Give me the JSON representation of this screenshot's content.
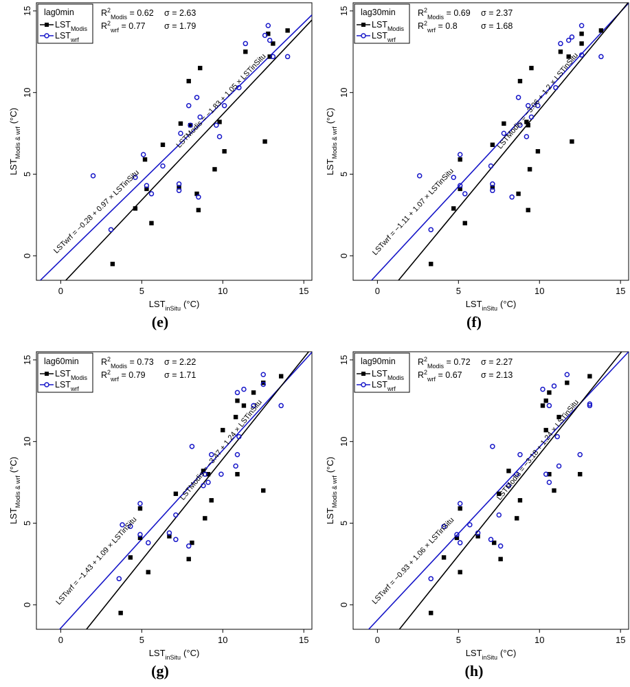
{
  "figure": {
    "legend_modis_base": "LST",
    "legend_modis_sub": "Modis",
    "legend_wrf_base": "LST",
    "legend_wrf_sub": "wrf",
    "colors": {
      "modis": "#000000",
      "wrf": "#1515c8"
    }
  },
  "chart_data": [
    {
      "type": "scatter",
      "panel_label": "(e)",
      "lag_label": "lag0min",
      "xlabel": "LST inSitu (°C)",
      "ylabel": "LST Modis & wrf (°C)",
      "xlim": [
        -1.5,
        15.5
      ],
      "ylim": [
        -1.5,
        15.5
      ],
      "xticks": [
        0,
        5,
        10,
        15
      ],
      "yticks": [
        0,
        5,
        10,
        15
      ],
      "r2_modis": "0.62",
      "sigma_modis": "2.63",
      "r2_wrf": "0.77",
      "sigma_wrf": "1.79",
      "fit_modis": {
        "intercept": -1.83,
        "slope": 1.05,
        "text": "LSTModis = −1.83 + 1.05 × LSTinSitu"
      },
      "fit_wrf": {
        "intercept": -0.28,
        "slope": 0.97,
        "text": "LSTwrf = −0.28 + 0.97 × LSTinSitu"
      },
      "series": [
        {
          "name": "LST Modis",
          "marker": "square",
          "points": [
            [
              3.2,
              -0.5
            ],
            [
              4.6,
              2.9
            ],
            [
              5.2,
              5.9
            ],
            [
              5.3,
              4.1
            ],
            [
              5.6,
              2.0
            ],
            [
              6.3,
              6.8
            ],
            [
              7.3,
              4.2
            ],
            [
              7.4,
              8.1
            ],
            [
              7.9,
              10.7
            ],
            [
              8.0,
              8.0
            ],
            [
              8.4,
              3.8
            ],
            [
              8.5,
              2.8
            ],
            [
              8.6,
              11.5
            ],
            [
              9.5,
              5.3
            ],
            [
              9.8,
              8.2
            ],
            [
              10.1,
              6.4
            ],
            [
              11.4,
              12.5
            ],
            [
              12.6,
              7.0
            ],
            [
              12.8,
              13.6
            ],
            [
              12.9,
              12.2
            ],
            [
              13.1,
              13.0
            ],
            [
              14.0,
              13.8
            ]
          ]
        },
        {
          "name": "LST wrf",
          "marker": "circle",
          "points": [
            [
              2.0,
              4.9
            ],
            [
              3.1,
              1.6
            ],
            [
              4.6,
              4.8
            ],
            [
              5.1,
              6.2
            ],
            [
              5.3,
              4.3
            ],
            [
              5.6,
              3.8
            ],
            [
              6.3,
              5.5
            ],
            [
              7.3,
              4.4
            ],
            [
              7.3,
              4.0
            ],
            [
              7.4,
              7.5
            ],
            [
              7.9,
              9.2
            ],
            [
              8.0,
              8.0
            ],
            [
              8.4,
              9.7
            ],
            [
              8.5,
              3.6
            ],
            [
              8.6,
              8.5
            ],
            [
              9.6,
              8.0
            ],
            [
              9.8,
              7.3
            ],
            [
              10.1,
              9.2
            ],
            [
              11.0,
              10.3
            ],
            [
              11.4,
              13.0
            ],
            [
              12.6,
              13.5
            ],
            [
              12.8,
              14.1
            ],
            [
              12.9,
              13.2
            ],
            [
              13.1,
              12.2
            ],
            [
              14.0,
              12.2
            ]
          ]
        }
      ]
    },
    {
      "type": "scatter",
      "panel_label": "(f)",
      "lag_label": "lag30min",
      "xlabel": "LST inSitu (°C)",
      "ylabel": "LST Modis & wrf (°C)",
      "xlim": [
        -1.5,
        15.5
      ],
      "ylim": [
        -1.5,
        15.5
      ],
      "xticks": [
        0,
        5,
        10,
        15
      ],
      "yticks": [
        0,
        5,
        10,
        15
      ],
      "r2_modis": "0.69",
      "sigma_modis": "2.37",
      "r2_wrf": "0.8",
      "sigma_wrf": "1.68",
      "fit_modis": {
        "intercept": -3.06,
        "slope": 1.2,
        "text": "LSTModis = −3.06 + 1.2 × LSTinSitu"
      },
      "fit_wrf": {
        "intercept": -1.11,
        "slope": 1.07,
        "text": "LSTwrf = −1.11 + 1.07 × LSTinSitu"
      },
      "series": [
        {
          "name": "LST Modis",
          "marker": "square",
          "points": [
            [
              3.3,
              -0.5
            ],
            [
              4.7,
              2.9
            ],
            [
              5.1,
              5.9
            ],
            [
              5.1,
              4.1
            ],
            [
              5.4,
              2.0
            ],
            [
              7.1,
              6.8
            ],
            [
              7.1,
              4.2
            ],
            [
              7.8,
              8.1
            ],
            [
              8.7,
              3.8
            ],
            [
              8.8,
              10.7
            ],
            [
              9.2,
              8.2
            ],
            [
              9.3,
              2.8
            ],
            [
              9.3,
              8.0
            ],
            [
              9.4,
              5.3
            ],
            [
              9.5,
              11.5
            ],
            [
              9.9,
              6.4
            ],
            [
              11.3,
              12.5
            ],
            [
              11.8,
              12.2
            ],
            [
              12.0,
              7.0
            ],
            [
              12.6,
              13.0
            ],
            [
              12.6,
              13.6
            ],
            [
              13.8,
              13.8
            ]
          ]
        },
        {
          "name": "LST wrf",
          "marker": "circle",
          "points": [
            [
              2.6,
              4.9
            ],
            [
              3.3,
              1.6
            ],
            [
              4.7,
              4.8
            ],
            [
              5.1,
              6.2
            ],
            [
              5.1,
              4.3
            ],
            [
              5.4,
              3.8
            ],
            [
              7.0,
              5.5
            ],
            [
              7.1,
              4.4
            ],
            [
              7.1,
              4.0
            ],
            [
              7.8,
              7.5
            ],
            [
              8.3,
              3.6
            ],
            [
              8.7,
              9.7
            ],
            [
              8.8,
              8.0
            ],
            [
              9.2,
              7.3
            ],
            [
              9.3,
              9.2
            ],
            [
              9.5,
              8.5
            ],
            [
              9.9,
              9.2
            ],
            [
              11.0,
              10.3
            ],
            [
              11.3,
              13.0
            ],
            [
              11.8,
              13.2
            ],
            [
              12.0,
              13.4
            ],
            [
              12.6,
              12.3
            ],
            [
              12.6,
              14.1
            ],
            [
              13.8,
              12.2
            ]
          ]
        }
      ]
    },
    {
      "type": "scatter",
      "panel_label": "(g)",
      "lag_label": "lag60min",
      "xlabel": "LST inSitu (°C)",
      "ylabel": "LST Modis & wrf (°C)",
      "xlim": [
        -1.5,
        15.5
      ],
      "ylim": [
        -1.5,
        15.5
      ],
      "xticks": [
        0,
        5,
        10,
        15
      ],
      "yticks": [
        0,
        5,
        10,
        15
      ],
      "r2_modis": "0.73",
      "sigma_modis": "2.22",
      "r2_wrf": "0.79",
      "sigma_wrf": "1.71",
      "fit_modis": {
        "intercept": -3.47,
        "slope": 1.24,
        "text": "LSTModis = −3.47 + 1.24 × LSTinSitu"
      },
      "fit_wrf": {
        "intercept": -1.43,
        "slope": 1.09,
        "text": "LSTwrf = −1.43 + 1.09 × LSTinSitu"
      },
      "series": [
        {
          "name": "LST Modis",
          "marker": "square",
          "points": [
            [
              3.7,
              -0.5
            ],
            [
              4.3,
              2.9
            ],
            [
              4.9,
              5.9
            ],
            [
              4.9,
              4.1
            ],
            [
              5.4,
              2.0
            ],
            [
              6.7,
              4.2
            ],
            [
              7.1,
              6.8
            ],
            [
              7.9,
              2.8
            ],
            [
              8.1,
              3.8
            ],
            [
              8.8,
              8.2
            ],
            [
              8.9,
              5.3
            ],
            [
              9.1,
              8.0
            ],
            [
              9.3,
              6.4
            ],
            [
              10.0,
              10.7
            ],
            [
              10.8,
              11.5
            ],
            [
              10.9,
              12.5
            ],
            [
              10.9,
              8.0
            ],
            [
              11.3,
              12.2
            ],
            [
              11.9,
              13.0
            ],
            [
              12.5,
              7.0
            ],
            [
              12.5,
              13.6
            ],
            [
              13.6,
              14.0
            ]
          ]
        },
        {
          "name": "LST wrf",
          "marker": "circle",
          "points": [
            [
              3.6,
              1.6
            ],
            [
              3.8,
              4.9
            ],
            [
              4.3,
              4.8
            ],
            [
              4.9,
              6.2
            ],
            [
              4.9,
              4.3
            ],
            [
              5.4,
              3.8
            ],
            [
              6.7,
              4.4
            ],
            [
              7.1,
              4.0
            ],
            [
              7.1,
              5.5
            ],
            [
              7.9,
              3.6
            ],
            [
              8.1,
              9.7
            ],
            [
              8.8,
              7.3
            ],
            [
              8.9,
              8.0
            ],
            [
              9.1,
              7.5
            ],
            [
              9.3,
              9.2
            ],
            [
              9.9,
              8.0
            ],
            [
              10.8,
              8.5
            ],
            [
              10.9,
              9.2
            ],
            [
              10.9,
              13.0
            ],
            [
              11.0,
              10.3
            ],
            [
              11.3,
              13.2
            ],
            [
              11.9,
              12.2
            ],
            [
              12.5,
              13.5
            ],
            [
              12.5,
              14.1
            ],
            [
              13.6,
              12.2
            ]
          ]
        }
      ]
    },
    {
      "type": "scatter",
      "panel_label": "(h)",
      "lag_label": "lag90min",
      "xlabel": "LST inSitu (°C)",
      "ylabel": "LST Modis & wrf (°C)",
      "xlim": [
        -1.5,
        15.5
      ],
      "ylim": [
        -1.5,
        15.5
      ],
      "xticks": [
        0,
        5,
        10,
        15
      ],
      "yticks": [
        0,
        5,
        10,
        15
      ],
      "r2_modis": "0.72",
      "sigma_modis": "2.27",
      "r2_wrf": "0.67",
      "sigma_wrf": "2.13",
      "fit_modis": {
        "intercept": -3.18,
        "slope": 1.24,
        "text": "LSTModis = −3.18 + 1.24 × LSTinSitu"
      },
      "fit_wrf": {
        "intercept": -0.93,
        "slope": 1.06,
        "text": "LSTwrf = −0.93 + 1.06 × LSTinSitu"
      },
      "series": [
        {
          "name": "LST Modis",
          "marker": "square",
          "points": [
            [
              3.3,
              -0.5
            ],
            [
              4.1,
              2.9
            ],
            [
              4.9,
              4.1
            ],
            [
              5.1,
              5.9
            ],
            [
              5.1,
              2.0
            ],
            [
              6.2,
              4.2
            ],
            [
              7.2,
              3.8
            ],
            [
              7.5,
              6.8
            ],
            [
              7.6,
              2.8
            ],
            [
              8.1,
              8.2
            ],
            [
              8.6,
              5.3
            ],
            [
              8.8,
              6.4
            ],
            [
              10.2,
              12.2
            ],
            [
              10.4,
              12.5
            ],
            [
              10.4,
              10.7
            ],
            [
              10.6,
              8.0
            ],
            [
              10.6,
              13.0
            ],
            [
              10.9,
              7.0
            ],
            [
              11.2,
              11.5
            ],
            [
              11.7,
              13.6
            ],
            [
              12.5,
              8.0
            ],
            [
              13.1,
              14.0
            ]
          ]
        },
        {
          "name": "LST wrf",
          "marker": "circle",
          "points": [
            [
              3.3,
              1.6
            ],
            [
              4.1,
              4.8
            ],
            [
              4.9,
              4.3
            ],
            [
              5.1,
              6.2
            ],
            [
              5.1,
              3.8
            ],
            [
              5.7,
              4.9
            ],
            [
              6.2,
              4.4
            ],
            [
              7.0,
              4.0
            ],
            [
              7.1,
              9.7
            ],
            [
              7.5,
              5.5
            ],
            [
              7.6,
              3.6
            ],
            [
              8.1,
              7.3
            ],
            [
              8.6,
              8.0
            ],
            [
              8.8,
              9.2
            ],
            [
              10.2,
              13.2
            ],
            [
              10.4,
              8.0
            ],
            [
              10.6,
              7.5
            ],
            [
              10.6,
              12.2
            ],
            [
              10.9,
              13.4
            ],
            [
              11.1,
              10.3
            ],
            [
              11.2,
              8.5
            ],
            [
              11.7,
              14.1
            ],
            [
              12.5,
              9.2
            ],
            [
              13.1,
              12.2
            ],
            [
              13.1,
              12.3
            ]
          ]
        }
      ]
    }
  ]
}
